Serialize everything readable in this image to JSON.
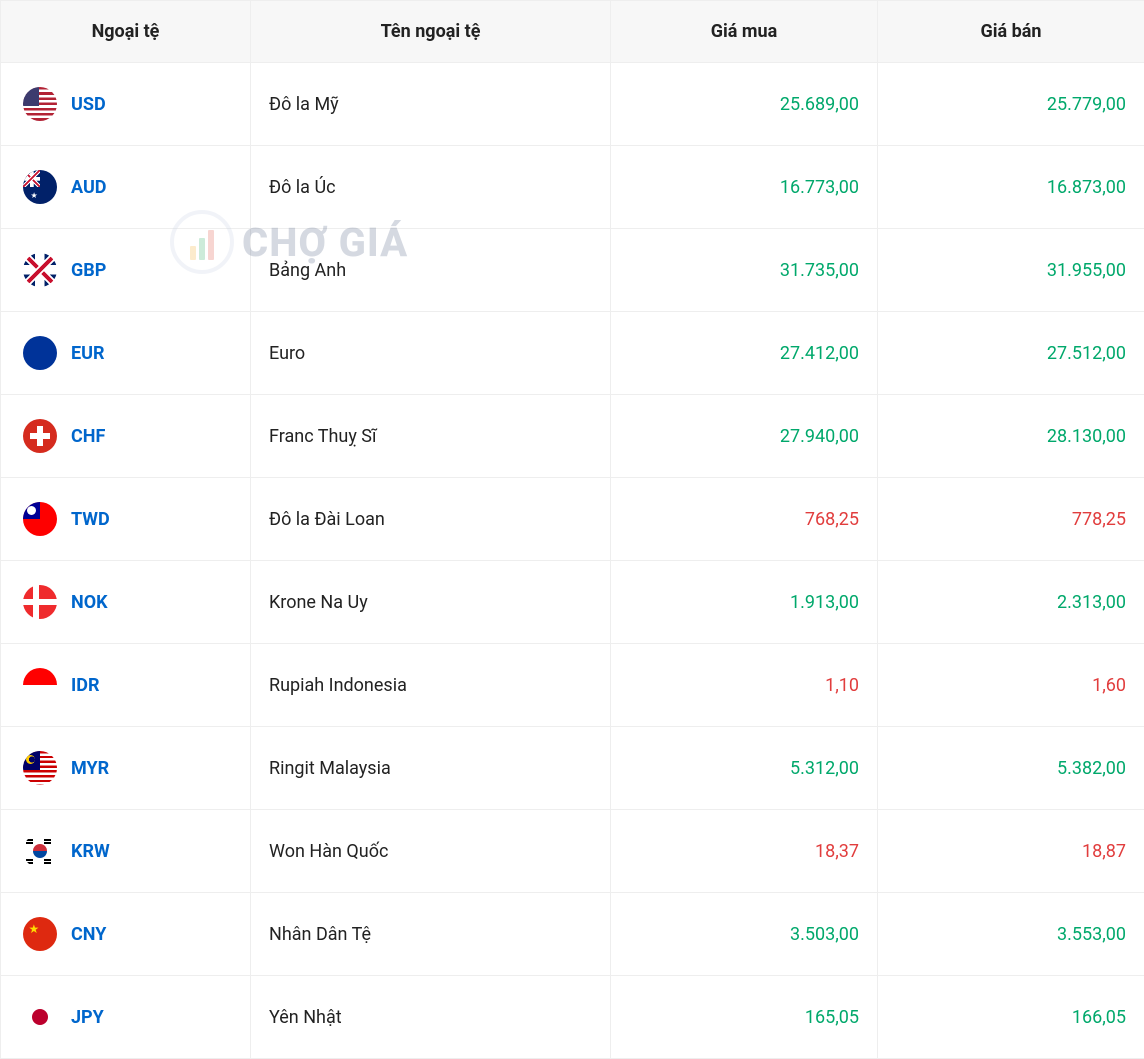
{
  "table": {
    "columns": {
      "code": "Ngoại tệ",
      "name": "Tên ngoại tệ",
      "buy": "Giá mua",
      "sell": "Giá bán"
    },
    "colors": {
      "link": "#0066cc",
      "up": "#00a86b",
      "down": "#e13d3d",
      "text": "#222222",
      "header_bg": "#f7f7f7",
      "border": "#eeeeee"
    },
    "rows": [
      {
        "code": "USD",
        "name": "Đô la Mỹ",
        "buy": "25.689,00",
        "sell": "25.779,00",
        "trend": "up",
        "flag": "usd"
      },
      {
        "code": "AUD",
        "name": "Đô la Úc",
        "buy": "16.773,00",
        "sell": "16.873,00",
        "trend": "up",
        "flag": "aud"
      },
      {
        "code": "GBP",
        "name": "Bảng Anh",
        "buy": "31.735,00",
        "sell": "31.955,00",
        "trend": "up",
        "flag": "gbp"
      },
      {
        "code": "EUR",
        "name": "Euro",
        "buy": "27.412,00",
        "sell": "27.512,00",
        "trend": "up",
        "flag": "eur"
      },
      {
        "code": "CHF",
        "name": "Franc Thuỵ Sĩ",
        "buy": "27.940,00",
        "sell": "28.130,00",
        "trend": "up",
        "flag": "chf"
      },
      {
        "code": "TWD",
        "name": "Đô la Đài Loan",
        "buy": "768,25",
        "sell": "778,25",
        "trend": "down",
        "flag": "twd"
      },
      {
        "code": "NOK",
        "name": "Krone Na Uy",
        "buy": "1.913,00",
        "sell": "2.313,00",
        "trend": "up",
        "flag": "nok"
      },
      {
        "code": "IDR",
        "name": "Rupiah Indonesia",
        "buy": "1,10",
        "sell": "1,60",
        "trend": "down",
        "flag": "idr"
      },
      {
        "code": "MYR",
        "name": "Ringit Malaysia",
        "buy": "5.312,00",
        "sell": "5.382,00",
        "trend": "up",
        "flag": "myr"
      },
      {
        "code": "KRW",
        "name": "Won Hàn Quốc",
        "buy": "18,37",
        "sell": "18,87",
        "trend": "down",
        "flag": "krw"
      },
      {
        "code": "CNY",
        "name": "Nhân Dân Tệ",
        "buy": "3.503,00",
        "sell": "3.553,00",
        "trend": "up",
        "flag": "cny"
      },
      {
        "code": "JPY",
        "name": "Yên Nhật",
        "buy": "165,05",
        "sell": "166,05",
        "trend": "up",
        "flag": "jpy"
      }
    ]
  },
  "watermark": {
    "text": "CHỢ GIÁ"
  }
}
